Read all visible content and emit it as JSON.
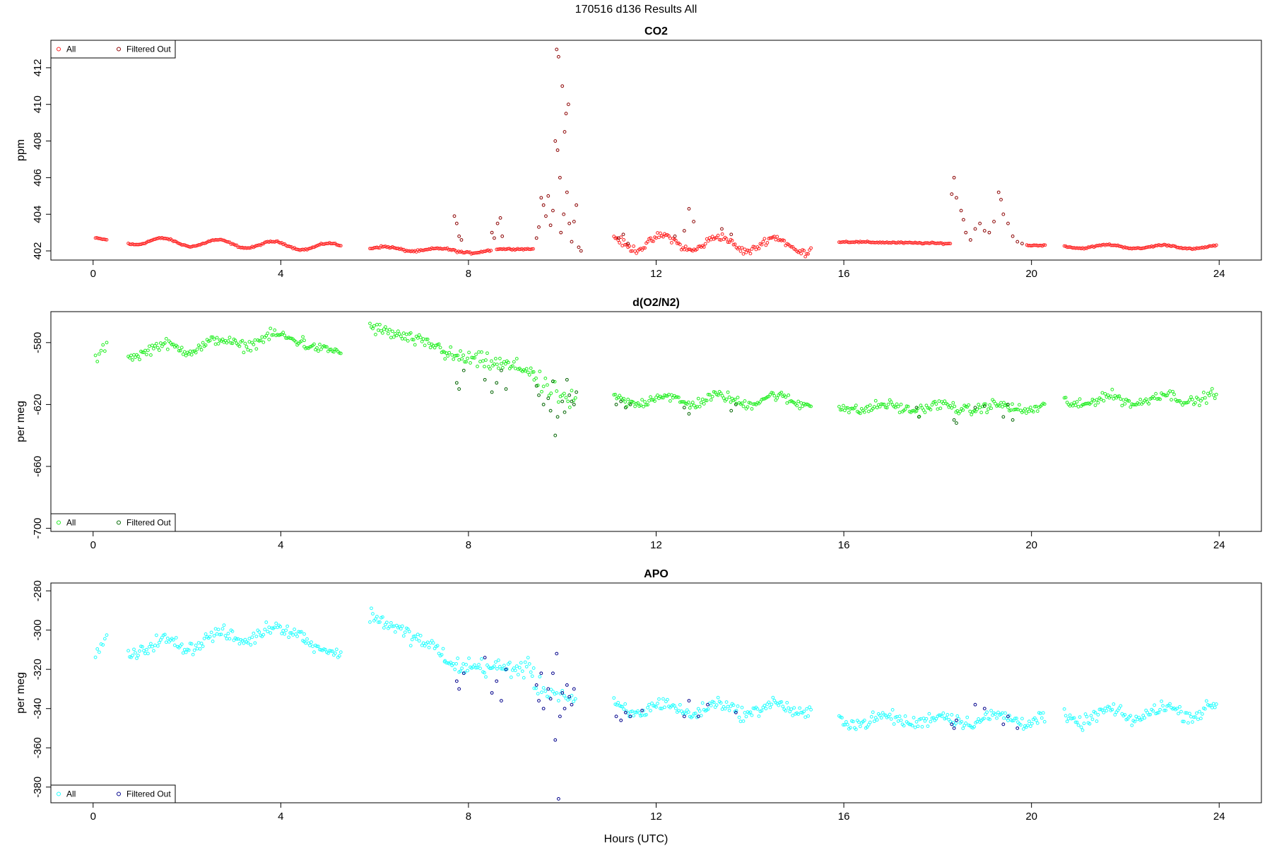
{
  "figure": {
    "title": "170516   d136   Results All",
    "xlabel": "Hours (UTC)"
  },
  "chart_data": [
    {
      "type": "scatter",
      "title": "CO2",
      "ylabel": "ppm",
      "xlim": [
        -0.9,
        24.9
      ],
      "ylim": [
        401.5,
        413.5
      ],
      "xticks": [
        0,
        4,
        8,
        12,
        16,
        20,
        24
      ],
      "yticks": [
        402,
        404,
        406,
        408,
        410,
        412
      ],
      "legend": {
        "position": "top-left",
        "entries": [
          "All",
          "Filtered Out"
        ]
      },
      "colors": {
        "all": "#ff2020",
        "filtered": "#8b0000"
      },
      "series": [
        {
          "name": "All",
          "segments": [
            {
              "x0": 0.05,
              "x1": 0.3,
              "y0": 402.7,
              "y1": 402.6,
              "noise": 0.05,
              "step": 0.03
            },
            {
              "x0": 0.75,
              "x1": 5.3,
              "y0": 402.55,
              "y1": 402.2,
              "noise": 0.06,
              "step": 0.03,
              "wave": 0.2
            },
            {
              "x0": 5.9,
              "x1": 8.5,
              "y0": 402.15,
              "y1": 401.95,
              "noise": 0.08,
              "step": 0.03,
              "wave": 0.1
            },
            {
              "x0": 8.6,
              "x1": 9.4,
              "y0": 402.1,
              "y1": 402.1,
              "noise": 0.05,
              "step": 0.03
            },
            {
              "x0": 11.1,
              "x1": 15.3,
              "y0": 402.5,
              "y1": 402.3,
              "noise": 0.3,
              "step": 0.03,
              "wave": 0.4
            },
            {
              "x0": 15.9,
              "x1": 18.3,
              "y0": 402.5,
              "y1": 402.4,
              "noise": 0.06,
              "step": 0.03
            },
            {
              "x0": 19.9,
              "x1": 20.3,
              "y0": 402.3,
              "y1": 402.3,
              "noise": 0.05,
              "step": 0.03
            },
            {
              "x0": 20.7,
              "x1": 23.95,
              "y0": 402.25,
              "y1": 402.2,
              "noise": 0.06,
              "step": 0.03,
              "wave": 0.1
            }
          ]
        },
        {
          "name": "Filtered Out",
          "points": [
            [
              7.7,
              403.9
            ],
            [
              7.75,
              403.5
            ],
            [
              7.8,
              402.8
            ],
            [
              7.85,
              402.6
            ],
            [
              8.5,
              403.0
            ],
            [
              8.55,
              402.7
            ],
            [
              8.62,
              403.5
            ],
            [
              8.68,
              403.8
            ],
            [
              8.72,
              402.8
            ],
            [
              9.45,
              402.7
            ],
            [
              9.5,
              403.3
            ],
            [
              9.55,
              404.9
            ],
            [
              9.6,
              404.5
            ],
            [
              9.65,
              403.9
            ],
            [
              9.7,
              405.0
            ],
            [
              9.75,
              403.4
            ],
            [
              9.8,
              404.2
            ],
            [
              9.85,
              408.0
            ],
            [
              9.88,
              413.0
            ],
            [
              9.9,
              407.5
            ],
            [
              9.92,
              412.6
            ],
            [
              9.95,
              406.0
            ],
            [
              9.97,
              403.0
            ],
            [
              10.0,
              411.0
            ],
            [
              10.03,
              404.0
            ],
            [
              10.05,
              408.5
            ],
            [
              10.08,
              409.5
            ],
            [
              10.1,
              405.2
            ],
            [
              10.13,
              410.0
            ],
            [
              10.15,
              403.5
            ],
            [
              10.2,
              402.5
            ],
            [
              10.25,
              403.6
            ],
            [
              10.3,
              404.5
            ],
            [
              10.35,
              402.2
            ],
            [
              10.4,
              402.0
            ],
            [
              11.2,
              402.7
            ],
            [
              11.3,
              402.9
            ],
            [
              11.4,
              402.4
            ],
            [
              12.4,
              402.8
            ],
            [
              12.6,
              403.1
            ],
            [
              12.7,
              404.3
            ],
            [
              12.8,
              403.6
            ],
            [
              13.4,
              403.2
            ],
            [
              13.6,
              402.9
            ],
            [
              18.3,
              405.1
            ],
            [
              18.35,
              406.0
            ],
            [
              18.4,
              404.9
            ],
            [
              18.5,
              404.2
            ],
            [
              18.55,
              403.7
            ],
            [
              18.6,
              403.0
            ],
            [
              18.7,
              402.6
            ],
            [
              18.8,
              403.2
            ],
            [
              18.9,
              403.5
            ],
            [
              19.0,
              403.1
            ],
            [
              19.1,
              403.0
            ],
            [
              19.2,
              403.6
            ],
            [
              19.3,
              405.2
            ],
            [
              19.35,
              404.8
            ],
            [
              19.4,
              404.0
            ],
            [
              19.5,
              403.5
            ],
            [
              19.6,
              402.8
            ],
            [
              19.7,
              402.5
            ],
            [
              19.8,
              402.4
            ]
          ]
        }
      ]
    },
    {
      "type": "scatter",
      "title": "d(O2/N2)",
      "ylabel": "per meg",
      "xlim": [
        -0.9,
        24.9
      ],
      "ylim": [
        -702,
        -560
      ],
      "xticks": [
        0,
        4,
        8,
        12,
        16,
        20,
        24
      ],
      "yticks": [
        -580,
        -620,
        -660,
        -700
      ],
      "legend": {
        "position": "bottom-left",
        "entries": [
          "All",
          "Filtered Out"
        ]
      },
      "colors": {
        "all": "#22ee22",
        "filtered": "#006400"
      },
      "series": [
        {
          "name": "All",
          "segments": [
            {
              "x0": 0.05,
              "x1": 0.3,
              "y0": -592,
              "y1": -580,
              "noise": 5,
              "step": 0.04
            },
            {
              "x0": 0.75,
              "x1": 4.5,
              "y0": -586,
              "y1": -576,
              "noise": 5,
              "step": 0.03,
              "wave": 3
            },
            {
              "x0": 4.5,
              "x1": 5.3,
              "y0": -582,
              "y1": -586,
              "noise": 4,
              "step": 0.03
            },
            {
              "x0": 5.9,
              "x1": 7.5,
              "y0": -570,
              "y1": -584,
              "noise": 6,
              "step": 0.03
            },
            {
              "x0": 7.5,
              "x1": 9.4,
              "y0": -588,
              "y1": -598,
              "noise": 8,
              "step": 0.03
            },
            {
              "x0": 9.4,
              "x1": 10.3,
              "y0": -605,
              "y1": -620,
              "noise": 10,
              "step": 0.04
            },
            {
              "x0": 11.1,
              "x1": 15.3,
              "y0": -617,
              "y1": -617,
              "noise": 5,
              "step": 0.03,
              "wave": 3
            },
            {
              "x0": 15.9,
              "x1": 20.3,
              "y0": -622,
              "y1": -622,
              "noise": 5,
              "step": 0.03,
              "wave": 2
            },
            {
              "x0": 20.7,
              "x1": 23.95,
              "y0": -618,
              "y1": -615,
              "noise": 5,
              "step": 0.03,
              "wave": 3
            }
          ]
        },
        {
          "name": "Filtered Out",
          "points": [
            [
              7.75,
              -606
            ],
            [
              7.8,
              -610
            ],
            [
              7.9,
              -598
            ],
            [
              8.35,
              -604
            ],
            [
              8.5,
              -612
            ],
            [
              8.6,
              -606
            ],
            [
              8.7,
              -598
            ],
            [
              8.8,
              -610
            ],
            [
              9.45,
              -608
            ],
            [
              9.5,
              -614
            ],
            [
              9.6,
              -620
            ],
            [
              9.7,
              -616
            ],
            [
              9.75,
              -624
            ],
            [
              9.8,
              -605
            ],
            [
              9.85,
              -640
            ],
            [
              9.9,
              -628
            ],
            [
              10.0,
              -618
            ],
            [
              10.05,
              -625
            ],
            [
              10.1,
              -604
            ],
            [
              10.15,
              -614
            ],
            [
              10.2,
              -618
            ],
            [
              10.25,
              -620
            ],
            [
              10.3,
              -612
            ],
            [
              11.15,
              -620
            ],
            [
              11.25,
              -618
            ],
            [
              11.35,
              -622
            ],
            [
              11.45,
              -620
            ],
            [
              12.6,
              -622
            ],
            [
              12.7,
              -626
            ],
            [
              13.6,
              -624
            ],
            [
              13.7,
              -620
            ],
            [
              17.55,
              -622
            ],
            [
              17.6,
              -628
            ],
            [
              18.35,
              -630
            ],
            [
              18.4,
              -632
            ],
            [
              18.8,
              -622
            ],
            [
              19.0,
              -621
            ],
            [
              19.4,
              -628
            ],
            [
              19.5,
              -620
            ],
            [
              19.6,
              -630
            ]
          ]
        }
      ]
    },
    {
      "type": "scatter",
      "title": "APO",
      "ylabel": "per meg",
      "xlim": [
        -0.9,
        24.9
      ],
      "ylim": [
        -388,
        -276
      ],
      "xticks": [
        0,
        4,
        8,
        12,
        16,
        20,
        24
      ],
      "yticks": [
        -280,
        -300,
        -320,
        -340,
        -360,
        -380
      ],
      "legend": {
        "position": "bottom-left",
        "entries": [
          "All",
          "Filtered Out"
        ]
      },
      "colors": {
        "all": "#22ffff",
        "filtered": "#00008b"
      },
      "series": [
        {
          "name": "All",
          "segments": [
            {
              "x0": 0.05,
              "x1": 0.3,
              "y0": -314,
              "y1": -303,
              "noise": 4,
              "step": 0.04
            },
            {
              "x0": 0.75,
              "x1": 4.5,
              "y0": -310,
              "y1": -299,
              "noise": 5,
              "step": 0.03,
              "wave": 3
            },
            {
              "x0": 4.5,
              "x1": 5.3,
              "y0": -306,
              "y1": -313,
              "noise": 4,
              "step": 0.03
            },
            {
              "x0": 5.9,
              "x1": 7.5,
              "y0": -292,
              "y1": -312,
              "noise": 6,
              "step": 0.03
            },
            {
              "x0": 7.5,
              "x1": 9.4,
              "y0": -318,
              "y1": -320,
              "noise": 7,
              "step": 0.03
            },
            {
              "x0": 9.4,
              "x1": 10.3,
              "y0": -328,
              "y1": -336,
              "noise": 7,
              "step": 0.04
            },
            {
              "x0": 11.1,
              "x1": 15.3,
              "y0": -340,
              "y1": -340,
              "noise": 5,
              "step": 0.03,
              "wave": 3
            },
            {
              "x0": 15.9,
              "x1": 20.3,
              "y0": -346,
              "y1": -345,
              "noise": 5,
              "step": 0.03,
              "wave": 2
            },
            {
              "x0": 20.7,
              "x1": 23.95,
              "y0": -345,
              "y1": -340,
              "noise": 5,
              "step": 0.03,
              "wave": 3
            }
          ]
        },
        {
          "name": "Filtered Out",
          "points": [
            [
              7.75,
              -326
            ],
            [
              7.8,
              -330
            ],
            [
              7.9,
              -322
            ],
            [
              8.35,
              -314
            ],
            [
              8.5,
              -332
            ],
            [
              8.6,
              -326
            ],
            [
              8.7,
              -336
            ],
            [
              8.8,
              -320
            ],
            [
              9.45,
              -328
            ],
            [
              9.5,
              -336
            ],
            [
              9.55,
              -322
            ],
            [
              9.6,
              -340
            ],
            [
              9.7,
              -330
            ],
            [
              9.75,
              -335
            ],
            [
              9.8,
              -322
            ],
            [
              9.85,
              -356
            ],
            [
              9.88,
              -312
            ],
            [
              9.92,
              -386
            ],
            [
              9.95,
              -344
            ],
            [
              10.0,
              -332
            ],
            [
              10.05,
              -340
            ],
            [
              10.1,
              -328
            ],
            [
              10.15,
              -334
            ],
            [
              10.2,
              -338
            ],
            [
              10.25,
              -330
            ],
            [
              11.15,
              -344
            ],
            [
              11.25,
              -346
            ],
            [
              11.35,
              -342
            ],
            [
              11.45,
              -344
            ],
            [
              11.7,
              -341
            ],
            [
              12.6,
              -344
            ],
            [
              12.7,
              -336
            ],
            [
              12.9,
              -344
            ],
            [
              13.1,
              -338
            ],
            [
              13.7,
              -342
            ],
            [
              18.3,
              -348
            ],
            [
              18.35,
              -350
            ],
            [
              18.4,
              -346
            ],
            [
              18.8,
              -338
            ],
            [
              19.0,
              -340
            ],
            [
              19.4,
              -348
            ],
            [
              19.5,
              -344
            ],
            [
              19.7,
              -350
            ]
          ]
        }
      ]
    }
  ]
}
